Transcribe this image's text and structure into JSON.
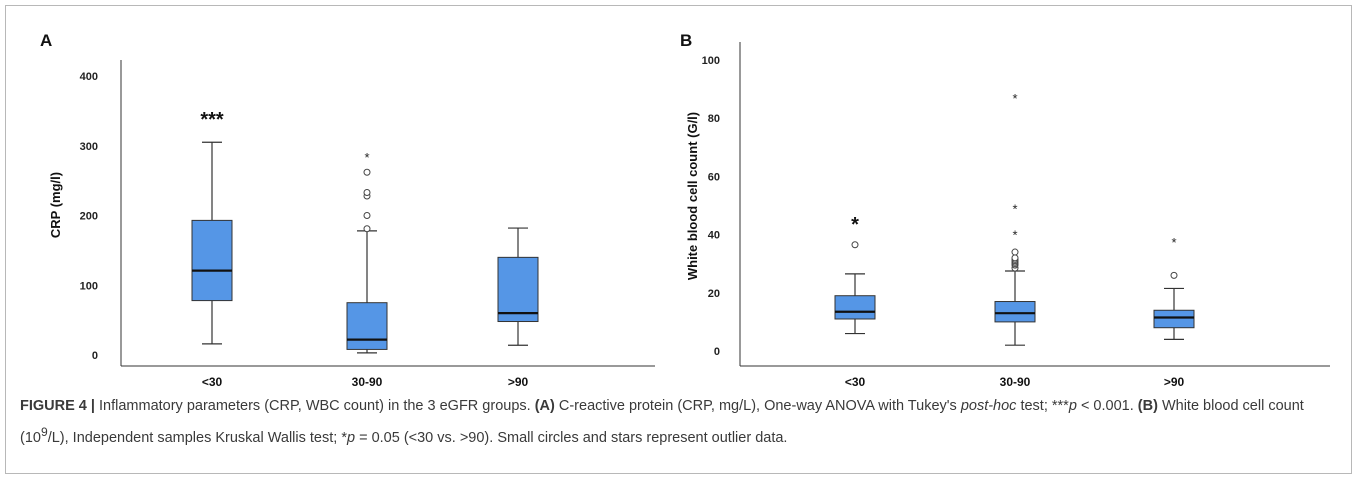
{
  "figure_label": "FIGURE 4 |",
  "caption": {
    "main": "Inflammatory parameters (CRP, WBC count) in the 3 eGFR groups.",
    "a_tag": "(A)",
    "a_text_1": "C-reactive protein (CRP, mg/L), One-way ANOVA with Tukey's",
    "a_italic": "post-hoc",
    "a_text_2": "test; ***",
    "a_p": "p",
    "a_text_3": "< 0.001.",
    "b_tag": "(B)",
    "b_text_1": "White blood cell count (10",
    "b_sup": "9",
    "b_text_2": "/L), Independent samples Kruskal Wallis test; *",
    "b_p": "p",
    "b_text_3": "= 0.05 (<30 vs. >90). Small circles and stars represent outlier data."
  },
  "colors": {
    "box_fill": "#5596E6",
    "box_stroke": "#333333",
    "axis": "#333333"
  },
  "chart_data": [
    {
      "type": "box",
      "panel_label": "A",
      "ylabel": "CRP (mg/l)",
      "ylim": [
        0,
        420
      ],
      "yticks": [
        0,
        100,
        200,
        300,
        400
      ],
      "categories": [
        "<30",
        "30-90",
        ">90"
      ],
      "boxes": [
        {
          "category": "<30",
          "min": 16,
          "q1": 78,
          "median": 121,
          "q3": 193,
          "max": 305,
          "outliers_circle": [],
          "outliers_star": [],
          "sig": "***",
          "sig_at": 340
        },
        {
          "category": "30-90",
          "min": 3,
          "q1": 8,
          "median": 22,
          "q3": 75,
          "max": 178,
          "outliers_circle": [
            181,
            200,
            228,
            233,
            262
          ],
          "outliers_star": [
            284
          ],
          "sig": "",
          "sig_at": null
        },
        {
          "category": ">90",
          "min": 14,
          "q1": 48,
          "median": 60,
          "q3": 140,
          "max": 182,
          "outliers_circle": [],
          "outliers_star": [],
          "sig": "",
          "sig_at": null
        }
      ]
    },
    {
      "type": "box",
      "panel_label": "B",
      "ylabel": "White blood cell count (G/l)",
      "ylim": [
        0,
        105
      ],
      "yticks": [
        0,
        20,
        40,
        60,
        80,
        100
      ],
      "categories": [
        "<30",
        "30-90",
        ">90"
      ],
      "boxes": [
        {
          "category": "<30",
          "min": 6,
          "q1": 11,
          "median": 13.5,
          "q3": 19,
          "max": 26.5,
          "outliers_circle": [
            36.5
          ],
          "outliers_star": [],
          "sig": "*",
          "sig_at": 44
        },
        {
          "category": "30-90",
          "min": 2,
          "q1": 10,
          "median": 13,
          "q3": 17,
          "max": 27.5,
          "outliers_circle": [
            28.5,
            29.5,
            30,
            30.5,
            31,
            31.5,
            32,
            34
          ],
          "outliers_star": [
            40,
            49,
            87
          ],
          "sig": "",
          "sig_at": null
        },
        {
          "category": ">90",
          "min": 4,
          "q1": 8,
          "median": 11.5,
          "q3": 14,
          "max": 21.5,
          "outliers_circle": [
            26
          ],
          "outliers_star": [
            37.5
          ],
          "sig": "",
          "sig_at": null
        }
      ]
    }
  ]
}
